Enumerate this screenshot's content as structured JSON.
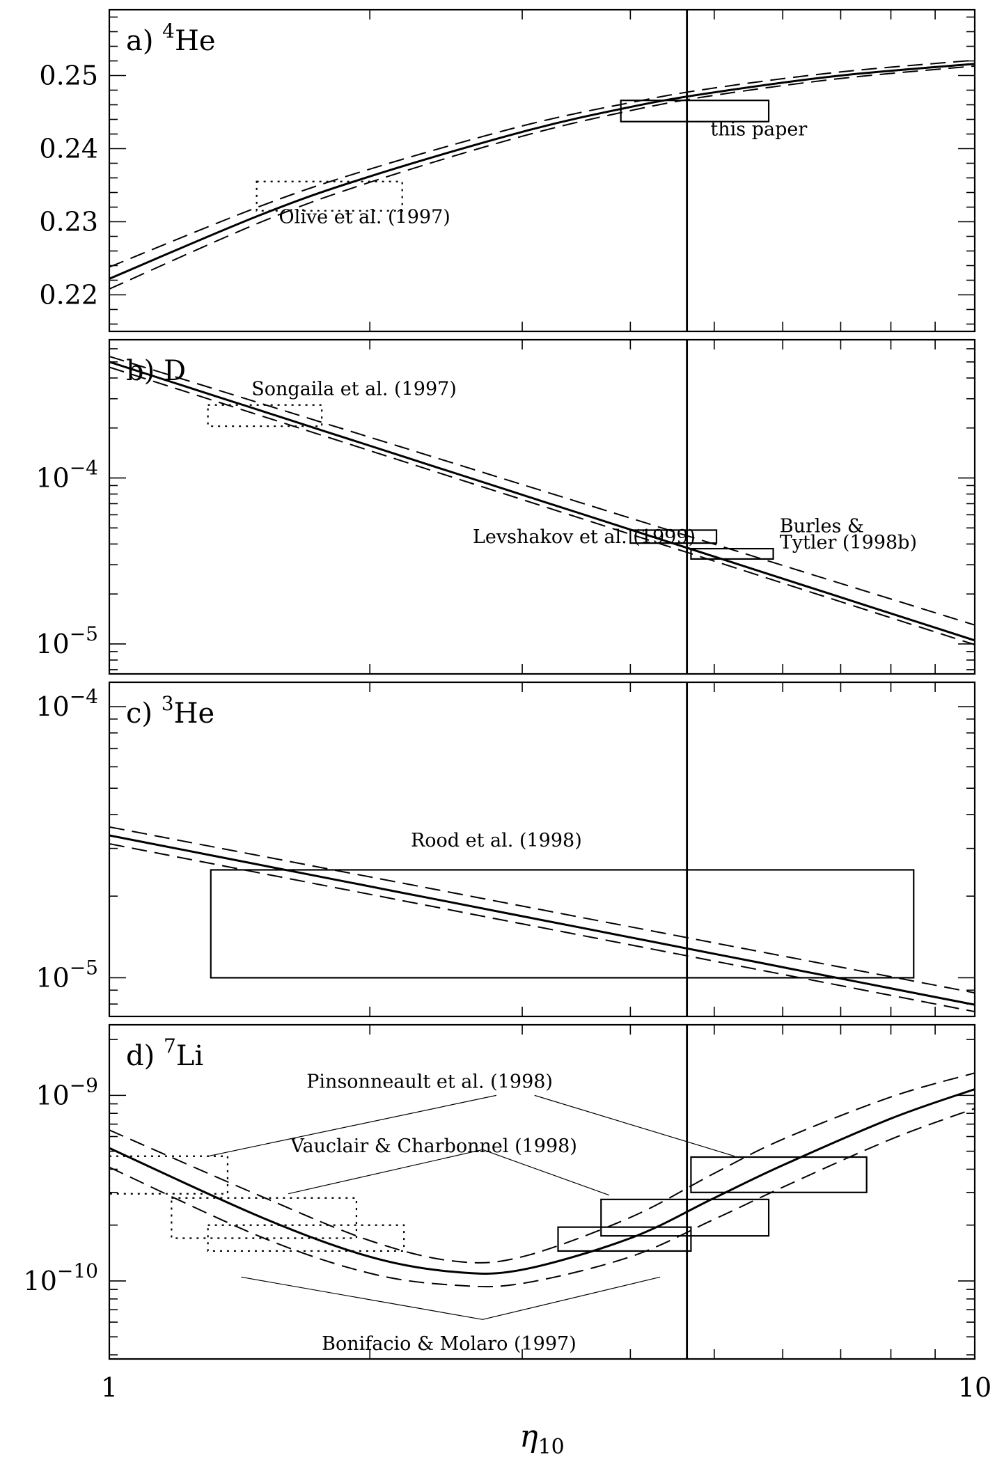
{
  "chart_data": {
    "type": "line",
    "xlabel": "η",
    "xlabel_sub": "10",
    "x_scale": "log",
    "xlim": [
      1,
      10
    ],
    "x_tick_labels": [
      "1",
      "10"
    ],
    "vertical_line_x": 4.65,
    "panels": [
      {
        "id": "a",
        "label_prefix": "a)",
        "label_sup": "4",
        "label_main": "He",
        "y_scale": "linear",
        "ylim": [
          0.215,
          0.259
        ],
        "y_tick_labels": [
          {
            "value": 0.22,
            "label": "0.22"
          },
          {
            "value": 0.23,
            "label": "0.23"
          },
          {
            "value": 0.24,
            "label": "0.24"
          },
          {
            "value": 0.25,
            "label": "0.25"
          }
        ],
        "curves": {
          "x": [
            1,
            1.5,
            2,
            3,
            4,
            5,
            7,
            10
          ],
          "central": [
            0.2222,
            0.231,
            0.2362,
            0.2423,
            0.2457,
            0.2477,
            0.25,
            0.2516
          ],
          "upper": [
            0.2238,
            0.2322,
            0.2372,
            0.2431,
            0.2463,
            0.2483,
            0.2505,
            0.2521
          ],
          "lower": [
            0.2208,
            0.23,
            0.2354,
            0.2417,
            0.2452,
            0.2473,
            0.2496,
            0.2513
          ]
        },
        "boxes": [
          {
            "x0": 1.48,
            "x1": 2.18,
            "y0": 0.2315,
            "y1": 0.2355,
            "style": "dotted"
          },
          {
            "x0": 3.9,
            "x1": 5.78,
            "y0": 0.2437,
            "y1": 0.2466,
            "style": "solid"
          }
        ],
        "annotations": [
          {
            "text": "Olive et al. (1997)",
            "x": 1.57,
            "y": 0.2298
          },
          {
            "text": "this paper",
            "x": 4.95,
            "y": 0.2418
          }
        ]
      },
      {
        "id": "b",
        "label_prefix": "b)",
        "label_sup": "",
        "label_main": "D",
        "y_scale": "log",
        "ylim": [
          6.6e-06,
          0.00068
        ],
        "y_tick_labels": [
          {
            "value": 0.0001,
            "base": "10",
            "exp": "−4"
          },
          {
            "value": 1e-05,
            "base": "10",
            "exp": "−5"
          }
        ],
        "curves": {
          "x": [
            1,
            10
          ],
          "central": [
            0.0005,
            1.05e-05
          ],
          "upper": [
            0.00054,
            1.3e-05
          ],
          "lower": [
            0.000465,
            9.9e-06
          ]
        },
        "boxes": [
          {
            "x0": 1.3,
            "x1": 1.76,
            "y0": 0.000205,
            "y1": 0.000275,
            "style": "dotted"
          },
          {
            "x0": 4.0,
            "x1": 5.03,
            "y0": 4.05e-05,
            "y1": 4.85e-05,
            "style": "solid"
          },
          {
            "x0": 4.7,
            "x1": 5.85,
            "y0": 3.25e-05,
            "y1": 3.75e-05,
            "style": "solid"
          }
        ],
        "annotations": [
          {
            "text": "Songaila et al. (1997)",
            "x": 1.46,
            "y": 0.000315
          },
          {
            "text": "Levshakov et al. (1999)",
            "x": 2.63,
            "y": 4.05e-05
          },
          {
            "text": "Burles &",
            "x": 5.95,
            "y": 4.7e-05
          },
          {
            "text": "Tytler (1998b)",
            "x": 5.95,
            "y": 3.75e-05
          }
        ]
      },
      {
        "id": "c",
        "label_prefix": "c)",
        "label_sup": "3",
        "label_main": "He",
        "y_scale": "log",
        "ylim": [
          7.2e-06,
          0.000123
        ],
        "y_tick_labels": [
          {
            "value": 0.0001,
            "base": "10",
            "exp": "−4"
          },
          {
            "value": 1e-05,
            "base": "10",
            "exp": "−5"
          }
        ],
        "curves": {
          "x": [
            1,
            10
          ],
          "central": [
            3.35e-05,
            7.95e-06
          ],
          "upper": [
            3.6e-05,
            8.8e-06
          ],
          "lower": [
            3.12e-05,
            7.5e-06
          ]
        },
        "boxes": [
          {
            "x0": 1.31,
            "x1": 8.5,
            "y0": 1e-05,
            "y1": 2.5e-05,
            "style": "solid"
          }
        ],
        "annotations": [
          {
            "text": "Rood et al. (1998)",
            "x": 2.23,
            "y": 3.05e-05
          }
        ]
      },
      {
        "id": "d",
        "label_prefix": "d)",
        "label_sup": "7",
        "label_main": "Li",
        "y_scale": "log",
        "ylim": [
          3.8e-11,
          2.4e-09
        ],
        "y_tick_labels": [
          {
            "value": 1e-09,
            "base": "10",
            "exp": "−9"
          },
          {
            "value": 1e-10,
            "base": "10",
            "exp": "−10"
          }
        ],
        "curves": {
          "x": [
            1,
            1.5,
            2,
            2.5,
            3,
            4,
            5,
            6,
            8,
            10
          ],
          "central": [
            5.2e-10,
            2.2e-10,
            1.35e-10,
            1.12e-10,
            1.15e-10,
            1.7e-10,
            2.8e-10,
            4.2e-10,
            7.5e-10,
            1.08e-09
          ],
          "upper": [
            6.5e-10,
            2.85e-10,
            1.65e-10,
            1.28e-10,
            1.35e-10,
            2.2e-10,
            3.8e-10,
            5.8e-10,
            9.8e-10,
            1.32e-09
          ],
          "lower": [
            4.1e-10,
            1.72e-10,
            1.1e-10,
            9.5e-11,
            9.7e-11,
            1.35e-10,
            2.15e-10,
            3.2e-10,
            5.8e-10,
            8.5e-10
          ]
        },
        "boxes": [
          {
            "x0": 1.0,
            "x1": 1.37,
            "y0": 2.95e-10,
            "y1": 4.7e-10,
            "style": "dotted"
          },
          {
            "x0": 1.18,
            "x1": 1.93,
            "y0": 1.7e-10,
            "y1": 2.8e-10,
            "style": "dotted"
          },
          {
            "x0": 1.3,
            "x1": 2.19,
            "y0": 1.45e-10,
            "y1": 2e-10,
            "style": "dotted"
          },
          {
            "x0": 3.3,
            "x1": 4.7,
            "y0": 1.45e-10,
            "y1": 1.95e-10,
            "style": "solid"
          },
          {
            "x0": 3.7,
            "x1": 5.78,
            "y0": 1.75e-10,
            "y1": 2.75e-10,
            "style": "solid"
          },
          {
            "x0": 4.7,
            "x1": 7.5,
            "y0": 3e-10,
            "y1": 4.65e-10,
            "style": "solid"
          }
        ],
        "annotations": [
          {
            "text": "Pinsonneault et al. (1998)",
            "x": 1.69,
            "y": 1.1e-09
          },
          {
            "text": "Vauclair & Charbonnel (1998)",
            "x": 1.62,
            "y": 4.95e-10
          },
          {
            "text": "Bonifacio & Molaro (1997)",
            "x": 1.76,
            "y": 4.25e-11
          }
        ],
        "leaders": [
          {
            "from": [
              2.8,
              1e-09
            ],
            "to": [
              1.3,
              4.7e-10
            ]
          },
          {
            "from": [
              3.1,
              1e-09
            ],
            "to": [
              5.28,
              4.7e-10
            ]
          },
          {
            "from": [
              2.7,
              5.1e-10
            ],
            "to": [
              1.61,
              2.95e-10
            ]
          },
          {
            "from": [
              2.7,
              5.1e-10
            ],
            "to": [
              3.78,
              2.9e-10
            ]
          },
          {
            "from": [
              2.7,
              6.2e-11
            ],
            "to": [
              1.42,
              1.05e-10
            ]
          },
          {
            "from": [
              2.7,
              6.2e-11
            ],
            "to": [
              4.33,
              1.05e-10
            ]
          }
        ]
      }
    ]
  }
}
